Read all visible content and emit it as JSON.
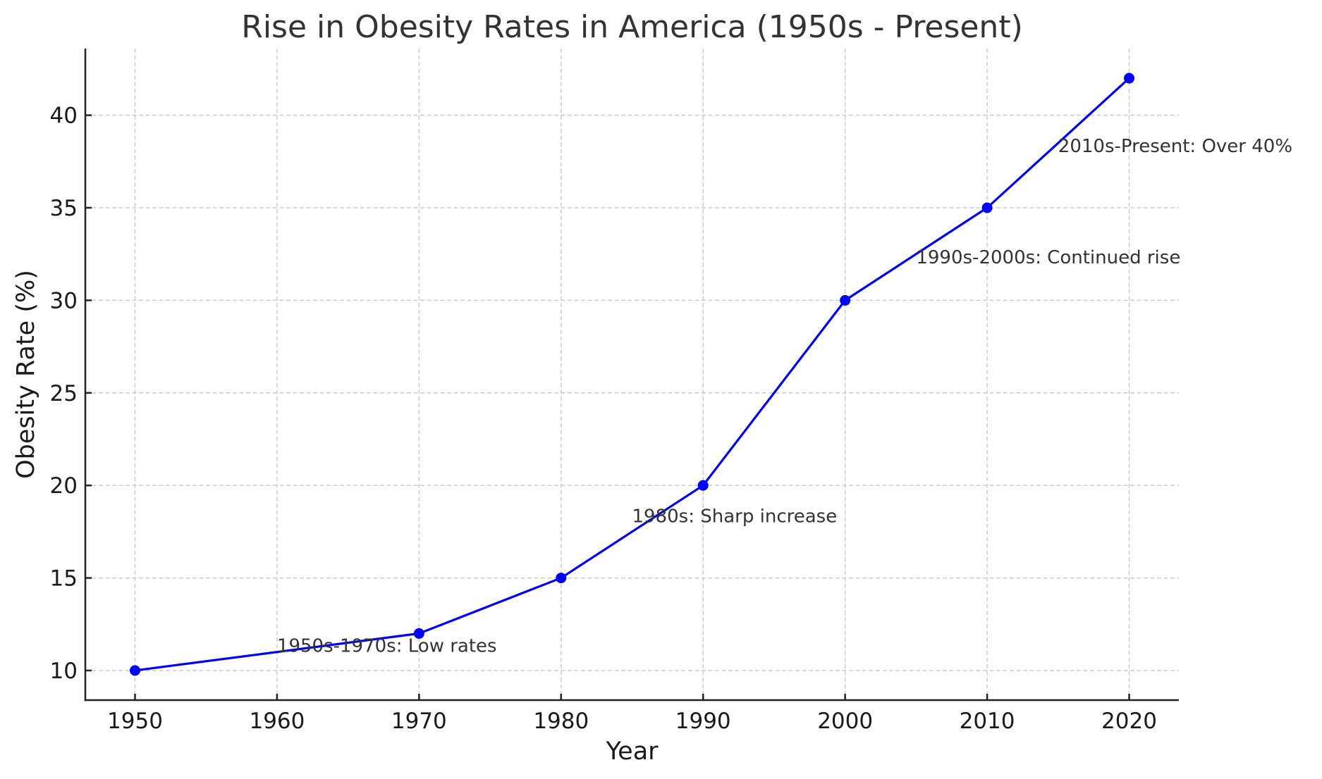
{
  "chart_data": {
    "type": "line",
    "title": "Rise in Obesity Rates in America (1950s - Present)",
    "xlabel": "Year",
    "ylabel": "Obesity Rate (%)",
    "x": [
      1950,
      1970,
      1980,
      1990,
      2000,
      2010,
      2020
    ],
    "series": [
      {
        "name": "Obesity Rate",
        "values": [
          10,
          12,
          15,
          20,
          30,
          35,
          42
        ],
        "color": "#0000ff",
        "marker": "circle"
      }
    ],
    "xlim": [
      1946.5,
      2023.5
    ],
    "ylim": [
      8.4,
      43.6
    ],
    "xticks": [
      1950,
      1960,
      1970,
      1980,
      1990,
      2000,
      2010,
      2020
    ],
    "xtick_labels": [
      "1950",
      "1960",
      "1970",
      "1980",
      "1990",
      "2000",
      "2010",
      "2020"
    ],
    "yticks": [
      10,
      15,
      20,
      25,
      30,
      35,
      40
    ],
    "ytick_labels": [
      "10",
      "15",
      "20",
      "25",
      "30",
      "35",
      "40"
    ],
    "grid": true,
    "legend": null,
    "annotations": [
      {
        "text": "1950s-1970s: Low rates",
        "x": 1960,
        "y": 11
      },
      {
        "text": "1980s: Sharp increase",
        "x": 1985,
        "y": 18
      },
      {
        "text": "1990s-2000s: Continued rise",
        "x": 2005,
        "y": 32
      },
      {
        "text": "2010s-Present: Over 40%",
        "x": 2015,
        "y": 38
      }
    ]
  }
}
